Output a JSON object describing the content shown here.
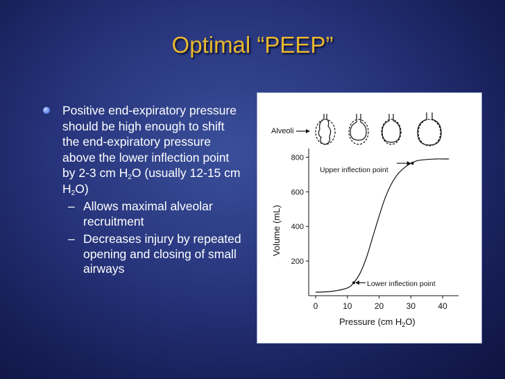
{
  "slide": {
    "title": "Optimal “PEEP”",
    "bullet": {
      "text_1": "Positive end-expiratory pressure should be high enough to shift the end-expiratory pressure above the lower inflection point  by 2-3 cm H",
      "sub_2": "2",
      "text_2": "O (usually 12-15 cm H",
      "sub_2b": "2",
      "text_3": "O)"
    },
    "subbullets": [
      "Allows  maximal alveolar recruitment",
      "Decreases injury by repeated opening and closing of small airways"
    ],
    "dash": "–"
  },
  "chart_data": {
    "type": "line",
    "xlabel": "Pressure (cm H",
    "xlabel_sub": "2",
    "xlabel_end": "O)",
    "ylabel": "Volume (mL)",
    "xlim": [
      0,
      45
    ],
    "ylim": [
      0,
      850
    ],
    "xticks": [
      0,
      10,
      20,
      30,
      40
    ],
    "yticks": [
      200,
      400,
      600,
      800
    ],
    "x": [
      0,
      5,
      10,
      12,
      14,
      16,
      18,
      20,
      22,
      24,
      26,
      28,
      30,
      32,
      34,
      36,
      38,
      40,
      42
    ],
    "y": [
      20,
      25,
      45,
      75,
      130,
      220,
      340,
      460,
      570,
      650,
      705,
      740,
      765,
      780,
      785,
      788,
      790,
      790,
      790
    ],
    "annotations": {
      "upper": {
        "label": "Upper inflection point",
        "x": 30.5,
        "y": 765
      },
      "lower": {
        "label": "Lower inflection point",
        "x": 12,
        "y": 75
      },
      "alveoli": "Alveoli"
    }
  }
}
